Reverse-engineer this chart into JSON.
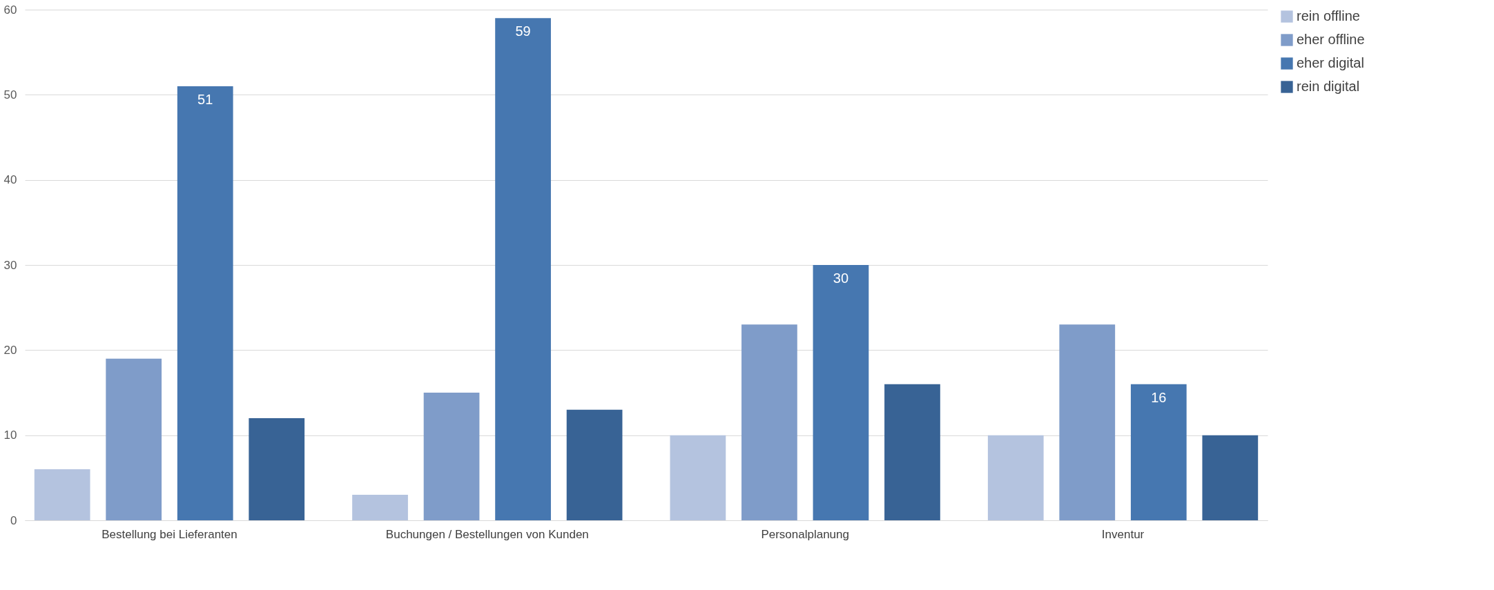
{
  "chart_data": {
    "type": "bar",
    "categories": [
      "Bestellung bei Lieferanten",
      "Buchungen / Bestellungen von Kunden",
      "Personalplanung",
      "Inventur"
    ],
    "series": [
      {
        "name": "rein offline",
        "color": "#b4c3df",
        "values": [
          6,
          3,
          10,
          10
        ]
      },
      {
        "name": "eher offline",
        "color": "#7f9cc9",
        "values": [
          19,
          15,
          23,
          23
        ]
      },
      {
        "name": "eher digital",
        "color": "#4677b0",
        "values": [
          51,
          59,
          30,
          16
        ],
        "value_labels": [
          "51",
          "59",
          "30",
          "16"
        ]
      },
      {
        "name": "rein digital",
        "color": "#386395",
        "values": [
          12,
          13,
          16,
          10
        ]
      }
    ],
    "ylim": [
      0,
      60
    ],
    "yticks": [
      0,
      10,
      20,
      30,
      40,
      50,
      60
    ],
    "grid": "y",
    "legend": "right"
  }
}
